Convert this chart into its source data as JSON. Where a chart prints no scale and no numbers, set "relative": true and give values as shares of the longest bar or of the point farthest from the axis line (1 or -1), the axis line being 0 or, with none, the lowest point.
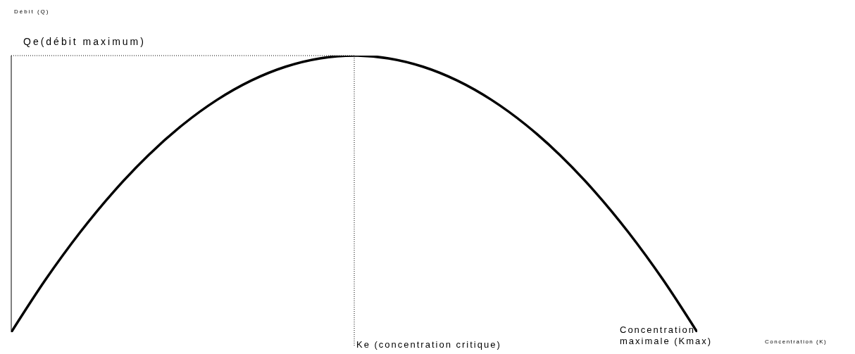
{
  "chart_data": {
    "type": "line",
    "relative": true,
    "color": "#000000",
    "marker": "none",
    "categories": [
      null,
      null,
      null,
      null,
      null,
      null,
      null,
      null,
      null,
      null,
      null,
      null,
      null,
      null,
      null,
      null,
      null,
      null,
      null,
      null,
      null
    ],
    "values": [
      0,
      0.19,
      0.36,
      0.51,
      0.64,
      0.75,
      0.84,
      0.91,
      0.96,
      0.99,
      1,
      0.99,
      0.96,
      0.91,
      0.84,
      0.75,
      0.64,
      0.51,
      0.36,
      0.19,
      0
    ],
    "ref_lines": [
      {
        "axis": "y",
        "value": 1,
        "label": "Qe(débit maximum)",
        "line_style": "dotted",
        "color": "#000000"
      }
    ],
    "annotations": [
      "Débit (Q)",
      "Ke (concentration critique)",
      "Concentration maximale (Kmax)",
      "Concentration (K)"
    ]
  }
}
